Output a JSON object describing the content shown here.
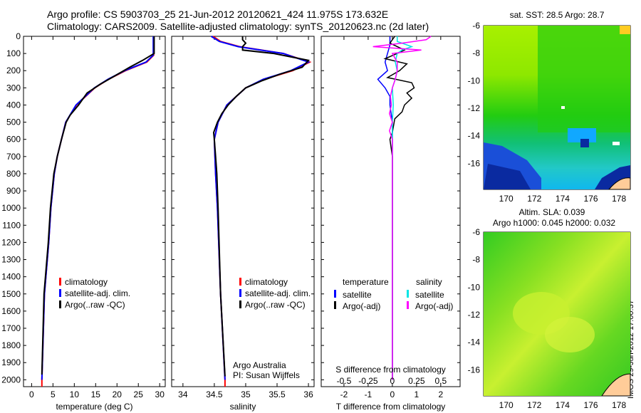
{
  "header": {
    "line1": "Argo profile: CS 5903703_25 21-Jun-2012 20120621_424 11.975S 173.632E",
    "line2": "Climatology: CARS2009. Satellite-adjusted climatology: synTS_20120623.nc (2d later)"
  },
  "stamp": "IMOS 29-Jun-2012 17:00:37",
  "colors": {
    "climatology": "#ff0000",
    "satellite_adj": "#0000ff",
    "argo": "#000000",
    "sal_satellite": "#00e5e5",
    "sal_argo": "#ff00ff"
  },
  "chart_data": [
    {
      "type": "line",
      "xlabel": "temperature (deg C)",
      "ylabel": "",
      "xlim": [
        -1.9,
        31.3
      ],
      "ylim": [
        0,
        2040
      ],
      "xticks": [
        0,
        5,
        10,
        15,
        20,
        25,
        30
      ],
      "yticks": [
        0,
        100,
        200,
        300,
        400,
        500,
        600,
        700,
        800,
        900,
        1000,
        1100,
        1200,
        1300,
        1400,
        1500,
        1600,
        1700,
        1800,
        1900,
        2000
      ],
      "legend": [
        "climatology",
        "satellite-adj. clim.",
        "Argo(..raw -QC)"
      ],
      "legend_placement": "lower-center",
      "series": [
        {
          "name": "climatology",
          "depth": [
            0,
            110,
            150,
            200,
            250,
            300,
            400,
            500,
            600,
            700,
            800,
            1000,
            1200,
            1500,
            2000,
            2040
          ],
          "values": [
            28.6,
            28.6,
            27,
            22,
            18,
            14.8,
            10.5,
            8,
            7,
            6,
            5.3,
            4.5,
            4,
            3,
            2.4,
            2.4
          ]
        },
        {
          "name": "satellite-adj. clim.",
          "depth": [
            0,
            110,
            150,
            200,
            250,
            300,
            400,
            500,
            600,
            700,
            800,
            1000,
            1200,
            1500,
            2000
          ],
          "values": [
            28.5,
            28.5,
            26.8,
            21.8,
            17.9,
            14.7,
            10.4,
            8,
            7,
            6,
            5.3,
            4.5,
            4,
            3,
            2.4
          ]
        },
        {
          "name": "Argo(..raw -QC)",
          "depth": [
            0,
            100,
            140,
            180,
            230,
            280,
            330,
            400,
            460,
            500,
            600,
            700,
            800,
            1000,
            1200,
            1500,
            1970
          ],
          "values": [
            28.7,
            28.7,
            26,
            23,
            19.5,
            16,
            13,
            11,
            9,
            8.1,
            7,
            6,
            5.2,
            4.4,
            3.9,
            2.9,
            2.4
          ]
        }
      ]
    },
    {
      "type": "line",
      "xlabel": "salinity",
      "xlim": [
        33.82,
        36.09
      ],
      "ylim": [
        0,
        2040
      ],
      "xticks": [
        34,
        34.5,
        35,
        35.5,
        36
      ],
      "legend": [
        "climatology",
        "satellite-adj. clim.",
        "Argo(..raw -QC)"
      ],
      "legend_placement": "lower-center",
      "annotation": [
        "Argo Australia",
        "PI: Susan Wijffels"
      ],
      "series": [
        {
          "name": "climatology",
          "depth": [
            0,
            30,
            60,
            100,
            150,
            200,
            250,
            300,
            400,
            500,
            600,
            800,
            1000,
            1500,
            2000,
            2040
          ],
          "values": [
            34.48,
            34.6,
            34.9,
            35.6,
            36.02,
            35.75,
            35.3,
            35.0,
            34.7,
            34.56,
            34.5,
            34.52,
            34.55,
            34.6,
            34.67,
            34.67
          ]
        },
        {
          "name": "satellite-adj. clim.",
          "depth": [
            0,
            30,
            60,
            100,
            150,
            200,
            250,
            300,
            400,
            500,
            600,
            800,
            1000,
            1500,
            2000
          ],
          "values": [
            34.45,
            34.58,
            34.88,
            35.6,
            36.0,
            35.72,
            35.28,
            35.0,
            34.7,
            34.56,
            34.5,
            34.52,
            34.55,
            34.6,
            34.67
          ]
        },
        {
          "name": "Argo(..raw -QC)",
          "depth": [
            0,
            20,
            40,
            60,
            80,
            100,
            140,
            180,
            220,
            260,
            300,
            350,
            400,
            450,
            500,
            560,
            600,
            700,
            800,
            1000,
            1500,
            1980
          ],
          "values": [
            34.95,
            34.95,
            35.0,
            34.95,
            34.95,
            35.45,
            36.0,
            35.9,
            35.55,
            35.25,
            35.0,
            34.85,
            34.72,
            34.62,
            34.55,
            34.49,
            34.5,
            34.52,
            34.54,
            34.56,
            34.6,
            34.67
          ]
        }
      ]
    },
    {
      "type": "line",
      "xlabel": "T difference from climatology",
      "x2label": "S difference from climatology",
      "xlim": [
        -2.94,
        2.8
      ],
      "x2lim": [
        -0.735,
        0.7
      ],
      "ylim": [
        0,
        2040
      ],
      "xticks": [
        -2,
        -1,
        0,
        1,
        2
      ],
      "x2ticks": [
        -0.5,
        -0.25,
        0,
        0.25,
        0.5
      ],
      "legend_titles": [
        "temperature",
        "salinity"
      ],
      "legend": [
        "satellite",
        "Argo(-adj)",
        "satellite",
        "Argo(-adj)"
      ],
      "series": [
        {
          "name": "temperature satellite",
          "axis": "T",
          "depth": [
            0,
            50,
            100,
            150,
            200,
            250,
            300,
            350,
            400,
            500,
            600,
            800,
            1000,
            1500,
            2000
          ],
          "values": [
            -0.1,
            -0.1,
            -0.2,
            -0.3,
            -0.2,
            -0.6,
            -0.3,
            -0.1,
            -0.1,
            0,
            0,
            0,
            0,
            0,
            0
          ]
        },
        {
          "name": "temperature Argo(-adj)",
          "axis": "T",
          "depth": [
            0,
            40,
            80,
            100,
            130,
            160,
            200,
            240,
            270,
            300,
            330,
            360,
            400,
            440,
            480,
            520,
            560,
            600,
            700,
            800,
            1000,
            1500,
            2000
          ],
          "values": [
            0.1,
            -0.1,
            0.5,
            0.2,
            -0.3,
            0.6,
            0.3,
            -0.2,
            0.8,
            0.9,
            0.6,
            0.8,
            0.5,
            0.4,
            0.1,
            0.05,
            0,
            -0.1,
            0,
            0,
            0,
            0,
            0
          ]
        },
        {
          "name": "salinity satellite",
          "axis": "S",
          "depth": [
            0,
            30,
            60,
            80,
            100,
            150,
            200,
            250,
            300,
            400,
            500,
            600,
            800,
            1000,
            2000
          ],
          "values": [
            0.05,
            0.05,
            0.2,
            0.1,
            0.05,
            0.03,
            0.05,
            0.03,
            0,
            0.01,
            0,
            0,
            0,
            0,
            0
          ]
        },
        {
          "name": "salinity Argo(-adj)",
          "axis": "S",
          "depth": [
            0,
            20,
            40,
            60,
            80,
            100,
            150,
            200,
            250,
            300,
            350,
            400,
            450,
            500,
            550,
            600,
            700,
            800,
            1000,
            2000
          ],
          "values": [
            0.4,
            0.35,
            0.1,
            -0.2,
            0.3,
            0,
            0.05,
            0.05,
            0.03,
            0,
            -0.02,
            -0.01,
            -0.03,
            0,
            -0.03,
            0,
            0,
            0,
            0,
            0
          ]
        }
      ]
    },
    {
      "type": "heatmap",
      "title": "sat. SST: 28.5 Argo: 28.7",
      "xlim": [
        168.4,
        178.8
      ],
      "ylim": [
        -17.9,
        -6
      ],
      "xticks": [
        170,
        172,
        174,
        176,
        178
      ],
      "yticks": [
        -6,
        -8,
        -10,
        -12,
        -14,
        -16
      ],
      "marker": {
        "lon": 173.632,
        "lat": -11.975
      }
    },
    {
      "type": "heatmap",
      "title": "Altim. SLA: 0.039",
      "subtitle": "Argo h1000: 0.045 h2000: 0.032",
      "xlim": [
        168.4,
        178.8
      ],
      "ylim": [
        -17.9,
        -6
      ],
      "xticks": [
        170,
        172,
        174,
        176,
        178
      ],
      "yticks": [
        -6,
        -8,
        -10,
        -12,
        -14,
        -16
      ],
      "marker": {
        "lon": 173.632,
        "lat": -11.975
      }
    }
  ]
}
